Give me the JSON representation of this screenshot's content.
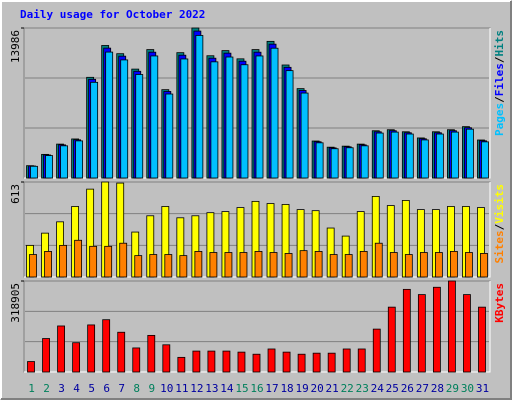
{
  "chart_data": [
    {
      "type": "bar",
      "title": "Daily usage for October 2022",
      "legend_separator": "/",
      "series": [
        {
          "name": "Hits",
          "color": "#008080",
          "values": [
            1150,
            2203,
            3161,
            3640,
            9388,
            12357,
            11591,
            10154,
            11974,
            8238,
            11687,
            13986,
            11400,
            11878,
            11112,
            11974,
            12741,
            10537,
            8334,
            3449,
            2874,
            2970,
            3161,
            4407,
            4502,
            4311,
            3736,
            4311,
            4502,
            4790,
            3544
          ]
        },
        {
          "name": "Files",
          "color": "#0000ff",
          "values": [
            1120,
            2150,
            3090,
            3560,
            9200,
            12110,
            11360,
            9950,
            11730,
            8070,
            11450,
            13700,
            11170,
            11640,
            10890,
            11730,
            12480,
            10320,
            8160,
            3380,
            2810,
            2910,
            3090,
            4310,
            4410,
            4220,
            3660,
            4220,
            4410,
            4690,
            3470
          ]
        },
        {
          "name": "Pages",
          "color": "#00c0ff",
          "values": [
            1090,
            2090,
            3000,
            3460,
            8920,
            11740,
            11010,
            9650,
            11380,
            7830,
            11100,
            13290,
            10830,
            11280,
            10560,
            11380,
            12100,
            10010,
            7920,
            3280,
            2730,
            2820,
            3000,
            4190,
            4280,
            4100,
            3550,
            4100,
            4280,
            4550,
            3370
          ]
        }
      ],
      "ylim": [
        0,
        13986
      ],
      "yticks": [
        13986
      ]
    },
    {
      "type": "bar",
      "legend_separator": "/",
      "series": [
        {
          "name": "Visits",
          "color": "#ffff00",
          "values": [
            204,
            283,
            356,
            455,
            567,
            613,
            606,
            290,
            395,
            455,
            382,
            395,
            415,
            422,
            448,
            488,
            474,
            468,
            435,
            428,
            316,
            264,
            422,
            520,
            461,
            494,
            435,
            435,
            455,
            455,
            448
          ]
        },
        {
          "name": "Sites",
          "color": "#ff8000",
          "values": [
            145,
            165,
            204,
            237,
            198,
            198,
            218,
            138,
            145,
            145,
            138,
            165,
            158,
            158,
            158,
            165,
            158,
            152,
            170,
            165,
            145,
            145,
            165,
            218,
            158,
            145,
            158,
            158,
            165,
            158,
            152
          ]
        }
      ],
      "ylim": [
        0,
        613
      ],
      "yticks": [
        613
      ]
    },
    {
      "type": "bar",
      "series": [
        {
          "name": "KBytes",
          "color": "#ff0000",
          "values": [
            36660,
            117312,
            161304,
            102648,
            164970,
            183300,
            139308,
            84318,
            128310,
            95316,
            51324,
            73320,
            73320,
            73320,
            69654,
            62322,
            80652,
            69654,
            62322,
            65988,
            65988,
            80652,
            80652,
            150306,
            227292,
            289614,
            271284,
            296946,
            318905,
            271284,
            227292
          ]
        }
      ],
      "ylim": [
        0,
        318905
      ],
      "yticks": [
        318905
      ],
      "categories": [
        "1",
        "2",
        "3",
        "4",
        "5",
        "6",
        "7",
        "8",
        "9",
        "10",
        "11",
        "12",
        "13",
        "14",
        "15",
        "16",
        "17",
        "18",
        "19",
        "20",
        "21",
        "22",
        "23",
        "24",
        "25",
        "26",
        "27",
        "28",
        "29",
        "30",
        "31"
      ],
      "category_colors": [
        "#00805c",
        "#00805c",
        "#0000a0",
        "#0000a0",
        "#0000a0",
        "#0000a0",
        "#0000a0",
        "#00805c",
        "#00805c",
        "#0000a0",
        "#0000a0",
        "#0000a0",
        "#0000a0",
        "#0000a0",
        "#00805c",
        "#00805c",
        "#0000a0",
        "#0000a0",
        "#0000a0",
        "#0000a0",
        "#0000a0",
        "#00805c",
        "#00805c",
        "#0000a0",
        "#0000a0",
        "#0000a0",
        "#0000a0",
        "#0000a0",
        "#00805c",
        "#00805c",
        "#0000a0"
      ]
    }
  ]
}
